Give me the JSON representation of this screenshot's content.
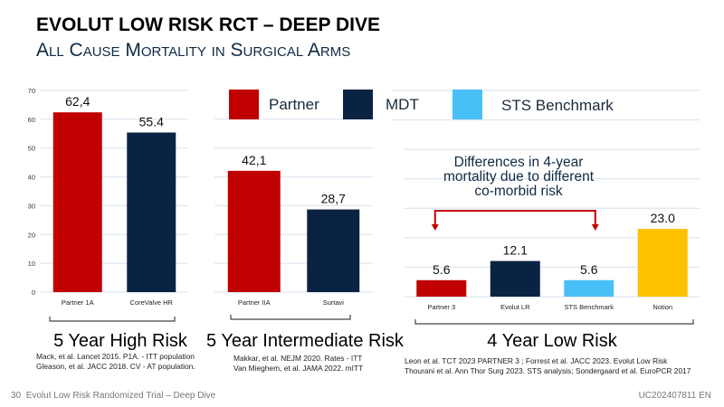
{
  "header": {
    "title": "EVOLUT LOW RISK RCT – DEEP DIVE",
    "subtitle": "All Cause Mortality in Surgical Arms"
  },
  "legend": [
    {
      "label": "Partner",
      "color": "#c00000"
    },
    {
      "label": "MDT",
      "color": "#0b2343"
    },
    {
      "label": "STS Benchmark",
      "color": "#49bff8"
    }
  ],
  "annotation": {
    "text_lines": [
      "Differences in 4-year",
      "mortality due to different",
      "co-morbid risk"
    ],
    "arrow_color": "#c00000",
    "connects": [
      "Partner 3",
      "STS Benchmark"
    ]
  },
  "chart_data": [
    {
      "type": "bar",
      "group_label": "5 Year High Risk",
      "categories": [
        "Partner 1A",
        "CoreValve HR"
      ],
      "values": [
        62.4,
        55.4
      ],
      "data_labels": [
        "62,4",
        "55.4"
      ],
      "colors": [
        "#c00000",
        "#0b2343"
      ],
      "ylim": [
        0,
        70
      ],
      "yticks": [
        0,
        10,
        20,
        30,
        40,
        50,
        60,
        70
      ],
      "show_yaxis_labels": true,
      "grid": true,
      "references": [
        "Mack, et al. Lancet 2015. P1A. - ITT population",
        "Gleason, et al. JACC 2018. CV - AT population."
      ]
    },
    {
      "type": "bar",
      "group_label": "5 Year Intermediate Risk",
      "categories": [
        "Partner IIA",
        "Surtavi"
      ],
      "values": [
        42.1,
        28.7
      ],
      "data_labels": [
        "42,1",
        "28,7"
      ],
      "colors": [
        "#c00000",
        "#0b2343"
      ],
      "ylim": [
        0,
        70
      ],
      "yticks": [
        0,
        10,
        20,
        30,
        40,
        50,
        60,
        70
      ],
      "show_yaxis_labels": false,
      "grid": true,
      "references": [
        "Makkar, et al. NEJM 2020. Rates - ITT",
        "Van Mieghem, et al. JAMA 2022. mITT"
      ]
    },
    {
      "type": "bar",
      "group_label": "4 Year Low Risk",
      "categories": [
        "Partner 3",
        "Evolut LR",
        "STS Benchmark",
        "Notion"
      ],
      "values": [
        5.6,
        12.1,
        5.6,
        23.0
      ],
      "data_labels": [
        "5.6",
        "12.1",
        "5.6",
        "23.0"
      ],
      "colors": [
        "#c00000",
        "#0b2343",
        "#49bff8",
        "#ffc000"
      ],
      "ylim": [
        0,
        70
      ],
      "yticks": [
        0,
        10,
        20,
        30,
        40,
        50,
        60,
        70
      ],
      "show_yaxis_labels": false,
      "grid": true,
      "references": [
        "Leon et al. TCT 2023 PARTNER 3 ; Forrest et al. JACC 2023. Evolut Low Risk",
        "Thourani et al. Ann Thor Surg 2023. STS analysis; Sondergaard et al. EuroPCR 2017"
      ]
    }
  ],
  "footer": {
    "page_number": "30",
    "deck_title": "Evolut Low Risk Randomized Trial – Deep Dive",
    "doc_code": "UC202407811 EN"
  }
}
